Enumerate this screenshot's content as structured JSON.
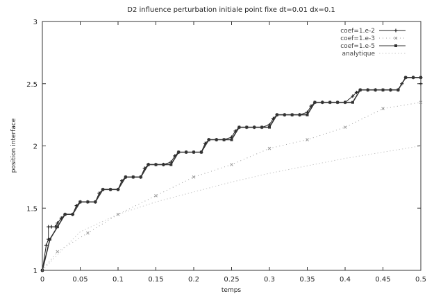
{
  "chart_data": {
    "type": "line",
    "title": "D2 influence perturbation initiale point fixe dt=0.01 dx=0.1",
    "xlabel": "temps",
    "ylabel": "position interface",
    "xlim": [
      0,
      0.5
    ],
    "ylim": [
      1,
      3
    ],
    "x_ticks": [
      "0",
      "0.05",
      "0.1",
      "0.15",
      "0.2",
      "0.25",
      "0.3",
      "0.35",
      "0.4",
      "0.45",
      "0.5"
    ],
    "y_ticks": [
      "1",
      "1.5",
      "2",
      "2.5",
      "3"
    ],
    "legend_position": "top-right",
    "grid": false,
    "series": [
      {
        "name": "coef=1.e-2",
        "color": "#222222",
        "marker": "plus",
        "x": [
          0,
          0.005,
          0.008,
          0.008,
          0.012,
          0.017,
          0.02,
          0.025,
          0.03,
          0.04,
          0.045,
          0.05,
          0.06,
          0.07,
          0.075,
          0.08,
          0.09,
          0.1,
          0.105,
          0.11,
          0.12,
          0.13,
          0.135,
          0.14,
          0.15,
          0.16,
          0.17,
          0.175,
          0.18,
          0.19,
          0.2,
          0.21,
          0.215,
          0.22,
          0.23,
          0.24,
          0.25,
          0.255,
          0.26,
          0.27,
          0.28,
          0.29,
          0.3,
          0.305,
          0.31,
          0.32,
          0.33,
          0.34,
          0.35,
          0.355,
          0.36,
          0.37,
          0.38,
          0.39,
          0.4,
          0.41,
          0.415,
          0.42,
          0.43,
          0.44,
          0.45,
          0.46,
          0.47,
          0.475,
          0.48,
          0.49,
          0.5,
          0.5
        ],
        "y": [
          1,
          1.2,
          1.25,
          1.35,
          1.35,
          1.35,
          1.38,
          1.42,
          1.45,
          1.45,
          1.52,
          1.55,
          1.55,
          1.55,
          1.62,
          1.65,
          1.65,
          1.65,
          1.72,
          1.75,
          1.75,
          1.75,
          1.82,
          1.85,
          1.85,
          1.85,
          1.87,
          1.92,
          1.95,
          1.95,
          1.95,
          1.95,
          2.02,
          2.05,
          2.05,
          2.05,
          2.07,
          2.12,
          2.15,
          2.15,
          2.15,
          2.15,
          2.17,
          2.22,
          2.25,
          2.25,
          2.25,
          2.25,
          2.27,
          2.32,
          2.35,
          2.35,
          2.35,
          2.35,
          2.35,
          2.4,
          2.43,
          2.45,
          2.45,
          2.45,
          2.45,
          2.45,
          2.45,
          2.5,
          2.55,
          2.55,
          2.55,
          2.5
        ]
      },
      {
        "name": "coef=1.e-3",
        "color": "#9a9a9a",
        "marker": "cross",
        "x": [
          0,
          0.02,
          0.06,
          0.1,
          0.15,
          0.2,
          0.25,
          0.3,
          0.35,
          0.4,
          0.45,
          0.5
        ],
        "y": [
          1,
          1.15,
          1.3,
          1.45,
          1.6,
          1.75,
          1.85,
          1.98,
          2.05,
          2.15,
          2.3,
          2.35
        ]
      },
      {
        "name": "coef=1.e-5",
        "color": "#333333",
        "marker": "dot",
        "x": [
          0,
          0.01,
          0.02,
          0.03,
          0.04,
          0.05,
          0.06,
          0.07,
          0.08,
          0.09,
          0.1,
          0.11,
          0.12,
          0.13,
          0.14,
          0.15,
          0.16,
          0.17,
          0.18,
          0.19,
          0.2,
          0.21,
          0.22,
          0.23,
          0.24,
          0.25,
          0.26,
          0.27,
          0.28,
          0.29,
          0.3,
          0.31,
          0.32,
          0.33,
          0.34,
          0.35,
          0.36,
          0.37,
          0.38,
          0.39,
          0.4,
          0.41,
          0.42,
          0.43,
          0.44,
          0.45,
          0.46,
          0.47,
          0.48,
          0.49,
          0.5
        ],
        "y": [
          1,
          1.25,
          1.35,
          1.45,
          1.45,
          1.55,
          1.55,
          1.55,
          1.65,
          1.65,
          1.65,
          1.75,
          1.75,
          1.75,
          1.85,
          1.85,
          1.85,
          1.85,
          1.95,
          1.95,
          1.95,
          1.95,
          2.05,
          2.05,
          2.05,
          2.05,
          2.15,
          2.15,
          2.15,
          2.15,
          2.15,
          2.25,
          2.25,
          2.25,
          2.25,
          2.25,
          2.35,
          2.35,
          2.35,
          2.35,
          2.35,
          2.35,
          2.45,
          2.45,
          2.45,
          2.45,
          2.45,
          2.45,
          2.55,
          2.55,
          2.55
        ]
      },
      {
        "name": "analytique",
        "color": "#c8c8c8",
        "marker": "none",
        "x": [
          0,
          0.05,
          0.1,
          0.15,
          0.2,
          0.25,
          0.3,
          0.35,
          0.4,
          0.45,
          0.5
        ],
        "y": [
          1,
          1.31,
          1.45,
          1.55,
          1.63,
          1.71,
          1.78,
          1.84,
          1.9,
          1.95,
          2.0
        ]
      }
    ]
  }
}
